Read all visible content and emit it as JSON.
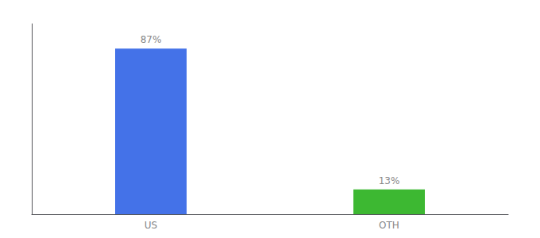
{
  "chart_data": {
    "type": "bar",
    "categories": [
      "US",
      "OTH"
    ],
    "values": [
      87,
      13
    ],
    "value_labels": [
      "87%",
      "13%"
    ],
    "colors": [
      "#4472e8",
      "#3db832"
    ],
    "ylim": [
      0,
      100
    ],
    "data_labels": true,
    "tick_labels": "x",
    "grid": false
  }
}
